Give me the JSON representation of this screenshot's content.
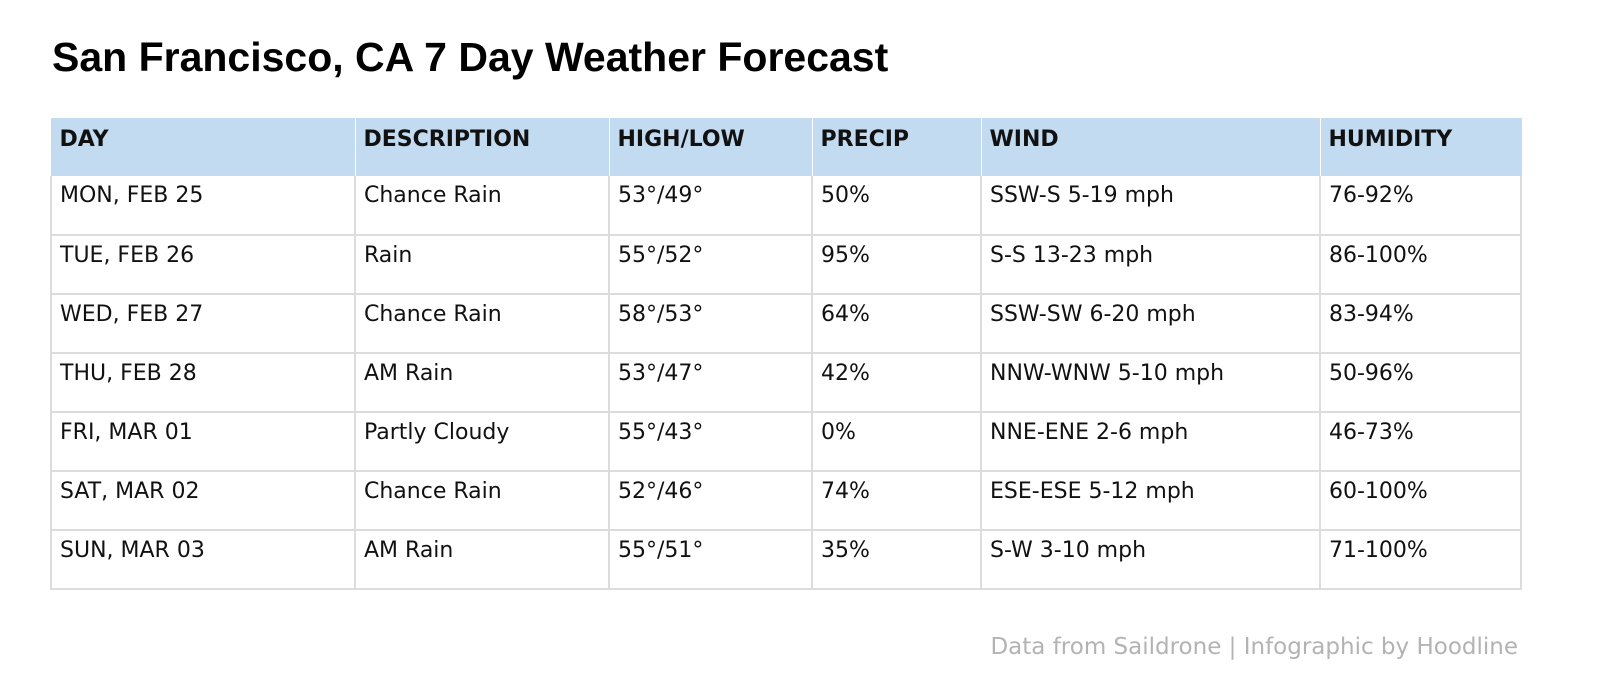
{
  "title": "San Francisco, CA 7 Day Weather Forecast",
  "table": {
    "headers": {
      "day": "DAY",
      "description": "DESCRIPTION",
      "high_low": "HIGH/LOW",
      "precip": "PRECIP",
      "wind": "WIND",
      "humidity": "HUMIDITY"
    },
    "rows": [
      {
        "day": "MON, FEB 25",
        "description": "Chance Rain",
        "high_low": "53°/49°",
        "precip": "50%",
        "wind": "SSW-S 5-19 mph",
        "humidity": "76-92%"
      },
      {
        "day": "TUE, FEB 26",
        "description": "Rain",
        "high_low": "55°/52°",
        "precip": "95%",
        "wind": "S-S 13-23 mph",
        "humidity": "86-100%"
      },
      {
        "day": "WED, FEB 27",
        "description": "Chance Rain",
        "high_low": "58°/53°",
        "precip": "64%",
        "wind": "SSW-SW 6-20 mph",
        "humidity": "83-94%"
      },
      {
        "day": "THU, FEB 28",
        "description": "AM Rain",
        "high_low": "53°/47°",
        "precip": "42%",
        "wind": "NNW-WNW 5-10 mph",
        "humidity": "50-96%"
      },
      {
        "day": "FRI, MAR 01",
        "description": "Partly Cloudy",
        "high_low": "55°/43°",
        "precip": "0%",
        "wind": "NNE-ENE 2-6 mph",
        "humidity": "46-73%"
      },
      {
        "day": "SAT, MAR 02",
        "description": "Chance Rain",
        "high_low": "52°/46°",
        "precip": "74%",
        "wind": "ESE-ESE 5-12 mph",
        "humidity": "60-100%"
      },
      {
        "day": "SUN, MAR 03",
        "description": "AM Rain",
        "high_low": "55°/51°",
        "precip": "35%",
        "wind": "S-W 3-10 mph",
        "humidity": "71-100%"
      }
    ]
  },
  "footer": "Data from Saildrone | Infographic by Hoodline",
  "colors": {
    "header_background": "#c3dbf1",
    "grid_line": "#dcdcdc",
    "footer_text": "#b3b3b3"
  }
}
